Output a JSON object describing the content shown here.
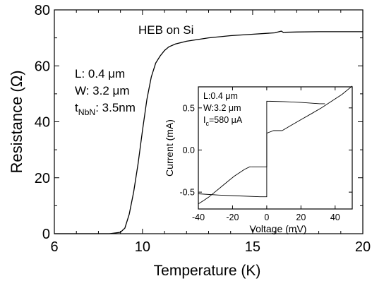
{
  "chart_data": [
    {
      "type": "line",
      "xlabel": "Temperature (K)",
      "ylabel": "Resistance (Ω)",
      "xlim": [
        6,
        20
      ],
      "ylim": [
        0,
        80
      ],
      "x_ticks": [
        "6",
        "10",
        "15",
        "20"
      ],
      "y_ticks": [
        "0",
        "20",
        "40",
        "60",
        "80"
      ],
      "annotation_title": "HEB on Si",
      "annotation_lines": [
        {
          "main": "L: 0.4 ",
          "unit": "μm"
        },
        {
          "main": "W: 3.2 ",
          "unit": "μm"
        },
        {
          "main": "t",
          "sub": "NbN",
          "rest": ": 3.5nm"
        }
      ],
      "series": [
        {
          "x": [
            6.0,
            8.5,
            9.0,
            9.2,
            9.4,
            9.6,
            9.8,
            10.0,
            10.2,
            10.4,
            10.6,
            10.8,
            11.0,
            11.2,
            11.5,
            12.0,
            13.0,
            14.0,
            15.0,
            16.0,
            16.3,
            16.4,
            16.5,
            17.0,
            18.0,
            19.0,
            20.0
          ],
          "y": [
            0,
            0,
            0.5,
            2,
            7,
            15,
            25,
            37,
            48,
            56,
            61,
            63.5,
            65.5,
            66.8,
            67.8,
            68.8,
            70.0,
            70.8,
            71.3,
            71.8,
            72.4,
            71.9,
            72.0,
            72.1,
            72.2,
            72.2,
            72.2
          ]
        }
      ]
    },
    {
      "type": "line",
      "xlabel": "Voltage (mV)",
      "ylabel": "Current (mA)",
      "xlim": [
        -40,
        50
      ],
      "ylim": [
        -0.7,
        0.75
      ],
      "x_ticks": [
        "-40",
        "-20",
        "0",
        "20",
        "40"
      ],
      "y_ticks": [
        "-0.5",
        "0.0",
        "0.5"
      ],
      "annotation_lines": [
        {
          "main": "L:0.4 ",
          "unit": "μm"
        },
        {
          "main": "W:3.2 ",
          "unit": "μm"
        },
        {
          "main": "I",
          "sub": "c",
          "rest": "=580 ",
          "unit": "μA"
        }
      ],
      "series": [
        {
          "x": [
            -40,
            -37,
            -34,
            -31,
            -28,
            -25,
            -22,
            -19,
            -16,
            -13,
            -10,
            -9
          ],
          "y": [
            -0.64,
            -0.6,
            -0.56,
            -0.51,
            -0.46,
            -0.41,
            -0.36,
            -0.31,
            -0.27,
            -0.23,
            -0.2,
            -0.2
          ]
        },
        {
          "x": [
            -9,
            -4,
            0,
            0,
            0,
            4,
            9
          ],
          "y": [
            -0.2,
            -0.2,
            -0.2,
            0,
            0.2,
            0.23,
            0.23
          ]
        },
        {
          "x": [
            9,
            14,
            20,
            26,
            32,
            38,
            44,
            50
          ],
          "y": [
            0.23,
            0.29,
            0.36,
            0.43,
            0.5,
            0.58,
            0.66,
            0.76
          ]
        },
        {
          "x": [
            -40,
            -28,
            -16,
            -4,
            0,
            0,
            0,
            10,
            20,
            31,
            34
          ],
          "y": [
            -0.52,
            -0.535,
            -0.545,
            -0.555,
            -0.555,
            0,
            0.58,
            0.575,
            0.565,
            0.55,
            0.55
          ]
        }
      ]
    }
  ]
}
